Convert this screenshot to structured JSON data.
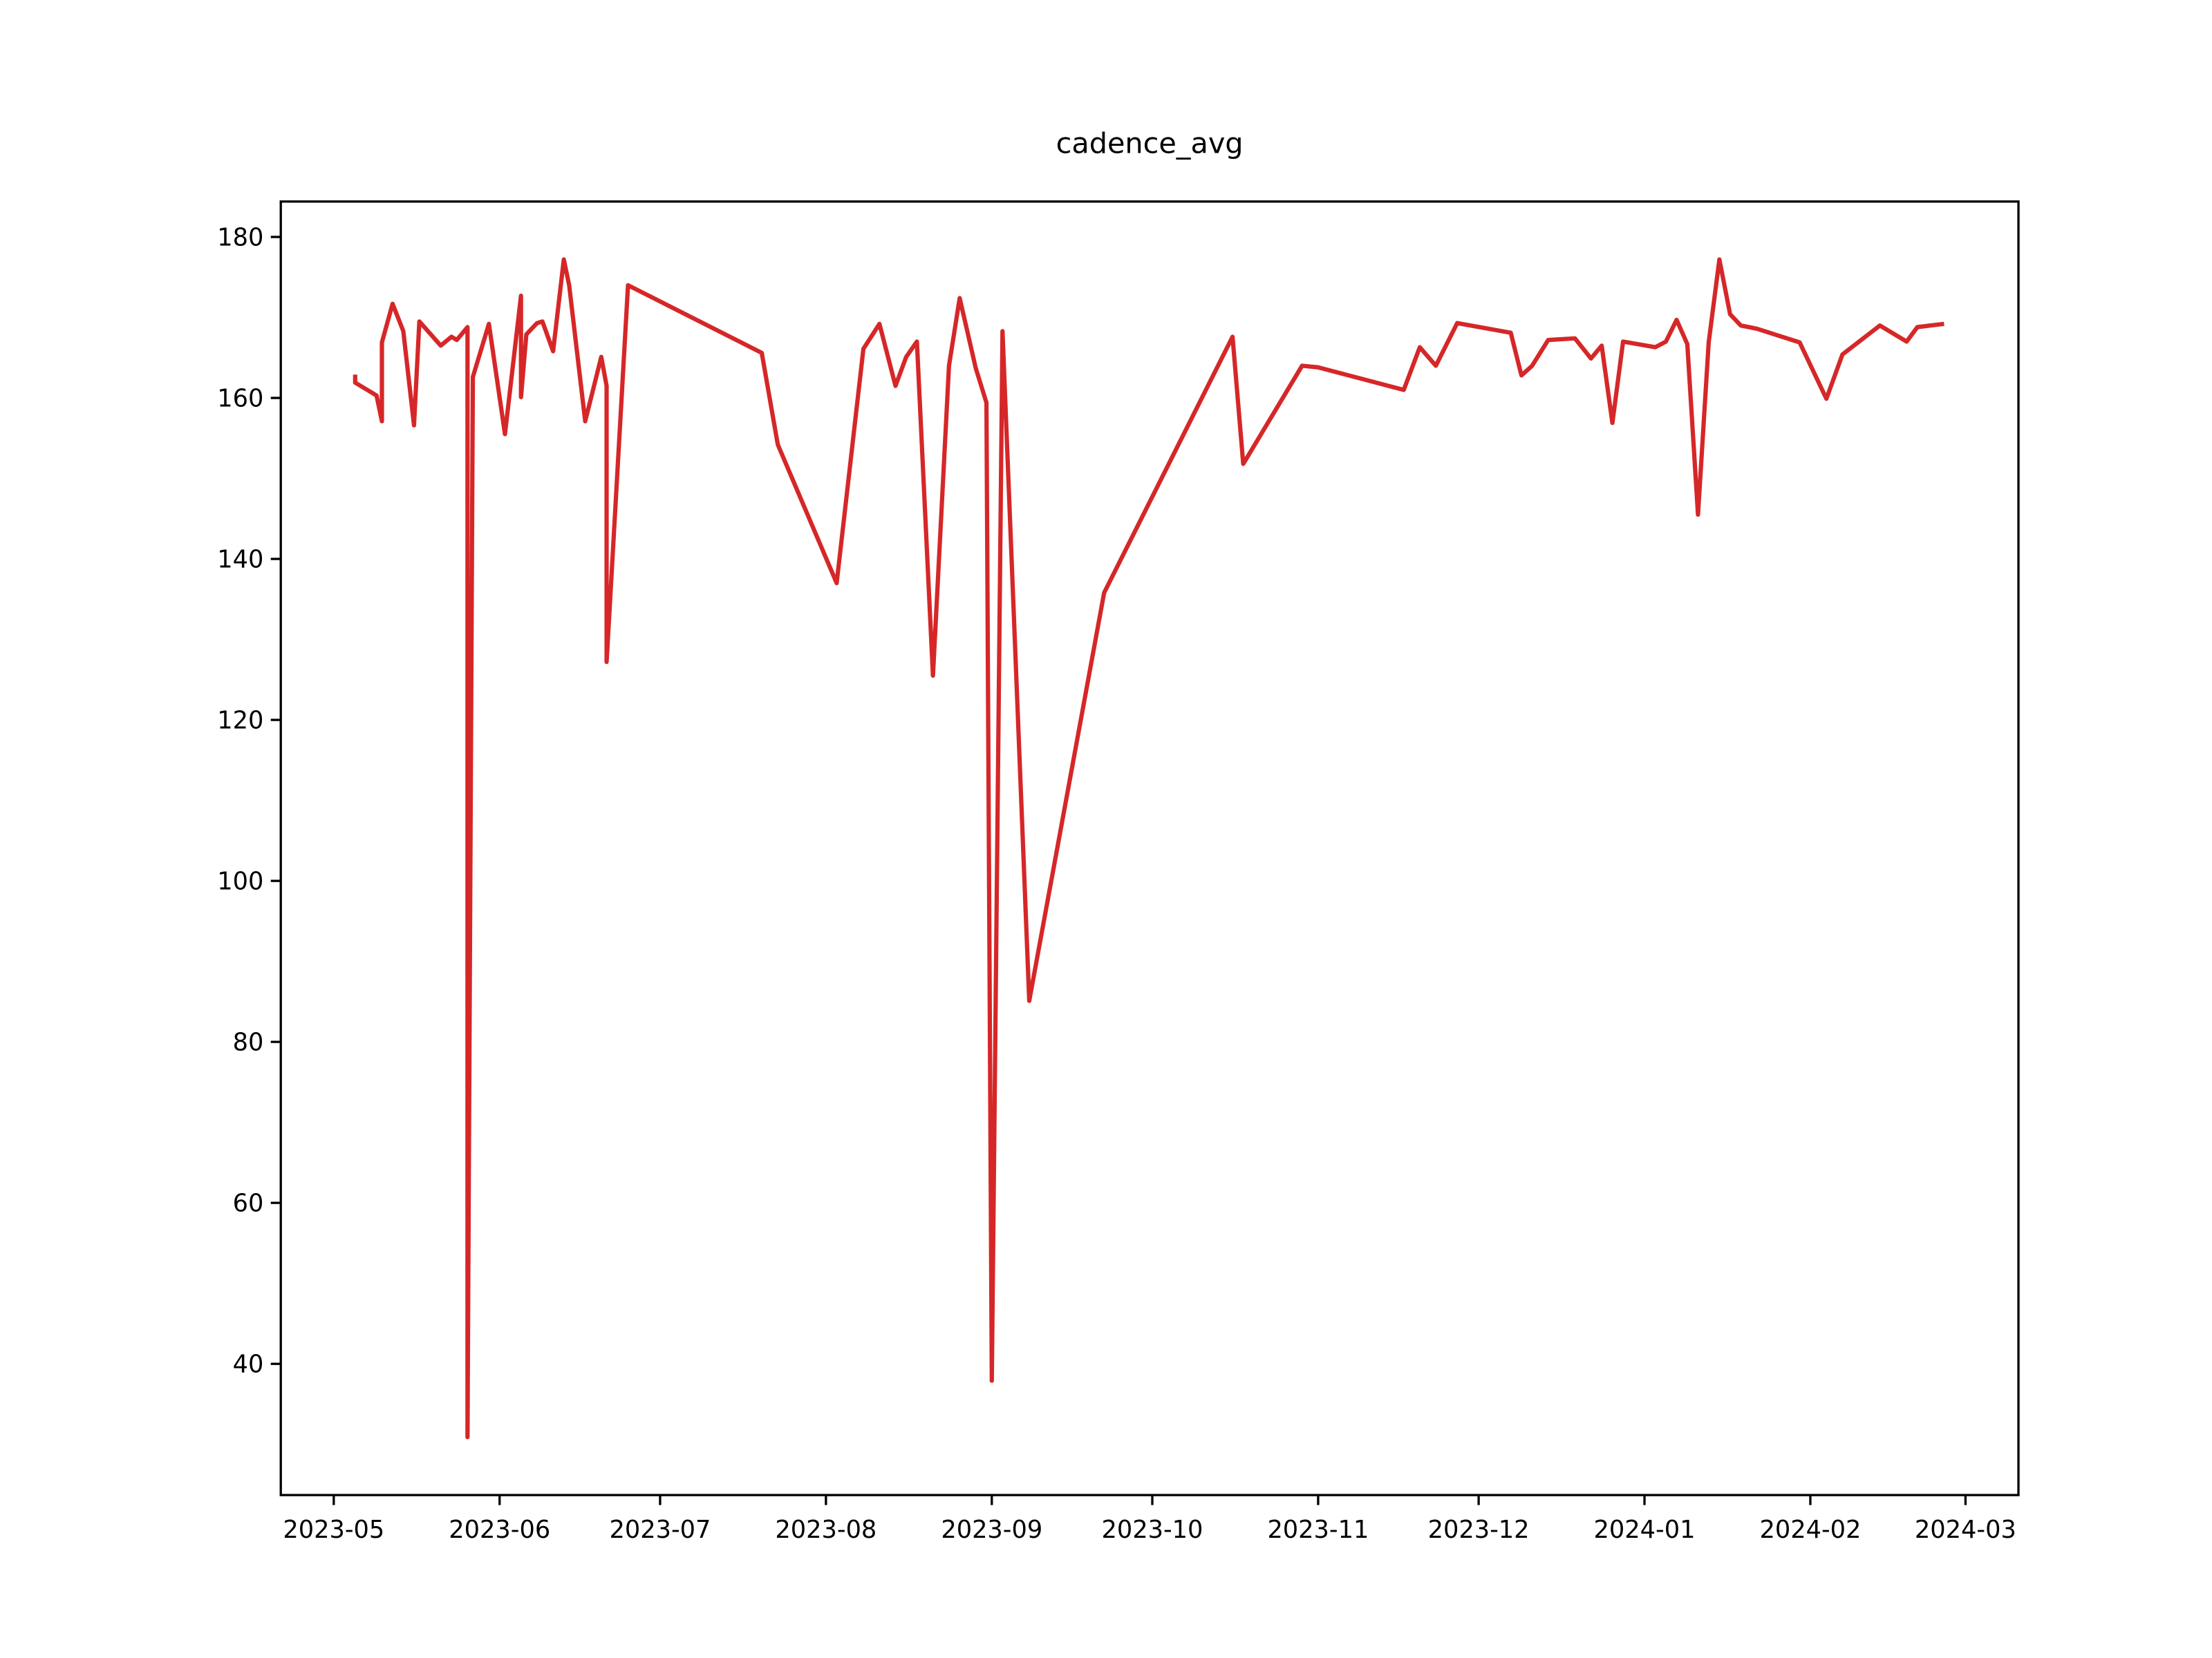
{
  "chart_data": {
    "type": "line",
    "title": "cadence_avg",
    "x": [
      19482,
      19482,
      19486,
      19487,
      19487,
      19489,
      19491,
      19493,
      19494,
      19498,
      19500,
      19501,
      19503,
      19503,
      19504,
      19507,
      19510,
      19513,
      19513,
      19514,
      19516,
      19517,
      19519,
      19521,
      19522,
      19525,
      19528,
      19529,
      19529,
      19533,
      19558,
      19561,
      19572,
      19577,
      19580,
      19583,
      19585,
      19587,
      19590,
      19593,
      19595,
      19598,
      19600,
      19601,
      19603,
      19608,
      19622,
      19646,
      19648,
      19659,
      19662,
      19678,
      19681,
      19684,
      19688,
      19698,
      19700,
      19702,
      19705,
      19710,
      19713,
      19715,
      19717,
      19719,
      19725,
      19727,
      19729,
      19731,
      19733,
      19735,
      19737,
      19739,
      19741,
      19744,
      19752,
      19757,
      19760,
      19767,
      19772,
      19774,
      19779
    ],
    "series": [
      {
        "name": "cadence_avg",
        "color": "#d62728",
        "values": [
          162.9,
          161.9,
          160.3,
          157.1,
          166.9,
          171.7,
          168.3,
          156.6,
          169.5,
          166.5,
          167.6,
          167.2,
          168.8,
          30.9,
          162.6,
          169.2,
          155.5,
          172.7,
          160.1,
          167.9,
          169.3,
          169.5,
          165.8,
          177.2,
          174.0,
          157.1,
          165.1,
          161.5,
          127.2,
          174.0,
          165.6,
          154.2,
          137.0,
          166.1,
          169.2,
          161.5,
          165.1,
          167.0,
          125.5,
          164.0,
          172.4,
          163.7,
          159.4,
          37.9,
          168.3,
          85.1,
          135.8,
          167.6,
          151.8,
          164.0,
          163.8,
          161.0,
          166.3,
          164.0,
          169.3,
          168.1,
          162.8,
          164.0,
          167.2,
          167.4,
          164.9,
          166.5,
          156.9,
          167.0,
          166.3,
          167.0,
          169.7,
          166.7,
          145.5,
          166.9,
          177.2,
          170.4,
          169.0,
          168.6,
          166.9,
          159.9,
          165.4,
          169.0,
          167.0,
          168.8,
          169.2
        ]
      }
    ],
    "xlim": [
      19468.1,
      19792.9
    ],
    "xticks": [
      {
        "value": 19478,
        "label": "2023-05"
      },
      {
        "value": 19509,
        "label": "2023-06"
      },
      {
        "value": 19539,
        "label": "2023-07"
      },
      {
        "value": 19570,
        "label": "2023-08"
      },
      {
        "value": 19601,
        "label": "2023-09"
      },
      {
        "value": 19631,
        "label": "2023-10"
      },
      {
        "value": 19662,
        "label": "2023-11"
      },
      {
        "value": 19692,
        "label": "2023-12"
      },
      {
        "value": 19723,
        "label": "2024-01"
      },
      {
        "value": 19754,
        "label": "2024-02"
      },
      {
        "value": 19783,
        "label": "2024-03"
      }
    ],
    "ylim": [
      23.7,
      184.4
    ],
    "yticks": [
      40,
      60,
      80,
      100,
      120,
      140,
      160,
      180
    ],
    "grid": false
  }
}
